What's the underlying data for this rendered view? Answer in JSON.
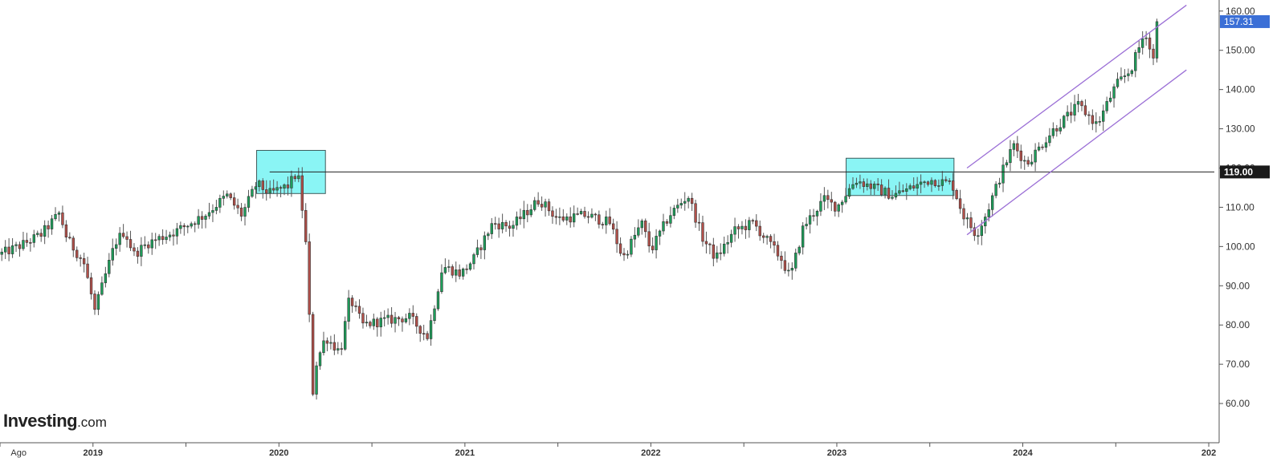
{
  "logo": {
    "main": "Investing",
    "suffix": ".com"
  },
  "chart_data": {
    "type": "candlestick",
    "interval": "weekly",
    "ylim": [
      50,
      162
    ],
    "y_ticks": [
      "60.00",
      "70.00",
      "80.00",
      "90.00",
      "100.00",
      "110.00",
      "120.00",
      "130.00",
      "140.00",
      "150.00",
      "160.00"
    ],
    "y_tick_values": [
      60,
      70,
      80,
      90,
      100,
      110,
      120,
      130,
      140,
      150,
      160
    ],
    "x_labels": [
      {
        "t": 2018.6,
        "label": "Ago",
        "bold": false
      },
      {
        "t": 2019.0,
        "label": "2019",
        "bold": true
      },
      {
        "t": 2020.0,
        "label": "2020",
        "bold": true
      },
      {
        "t": 2021.0,
        "label": "2021",
        "bold": true
      },
      {
        "t": 2022.0,
        "label": "2022",
        "bold": true
      },
      {
        "t": 2023.0,
        "label": "2023",
        "bold": true
      },
      {
        "t": 2024.0,
        "label": "2024",
        "bold": true
      },
      {
        "t": 2025.0,
        "label": "202",
        "bold": true
      }
    ],
    "x_range": [
      2018.5,
      2025.03
    ],
    "last_price": {
      "value": 157.31,
      "label": "157.31"
    },
    "horizontal_level": {
      "value": 119.0,
      "label": "119.00"
    },
    "zones": [
      {
        "t0": 2019.88,
        "t1": 2020.25,
        "y0": 113.5,
        "y1": 124.5
      },
      {
        "t0": 2023.05,
        "t1": 2023.63,
        "y0": 113.0,
        "y1": 122.5
      }
    ],
    "channel": [
      {
        "t0": 2023.7,
        "v0": 120.0,
        "t1": 2024.88,
        "v1": 161.5
      },
      {
        "t0": 2023.7,
        "v0": 103.0,
        "t1": 2024.88,
        "v1": 145.0
      }
    ],
    "anchors": [
      [
        2018.5,
        98
      ],
      [
        2018.6,
        100
      ],
      [
        2018.72,
        103
      ],
      [
        2018.82,
        108.5
      ],
      [
        2018.86,
        102
      ],
      [
        2018.95,
        96
      ],
      [
        2018.99,
        88
      ],
      [
        2019.0,
        82
      ],
      [
        2019.05,
        90
      ],
      [
        2019.12,
        101
      ],
      [
        2019.17,
        104
      ],
      [
        2019.22,
        98
      ],
      [
        2019.3,
        101
      ],
      [
        2019.45,
        104
      ],
      [
        2019.6,
        108
      ],
      [
        2019.72,
        113
      ],
      [
        2019.8,
        108
      ],
      [
        2019.88,
        116
      ],
      [
        2019.95,
        113.5
      ],
      [
        2020.05,
        115.5
      ],
      [
        2020.1,
        119
      ],
      [
        2020.12,
        112
      ],
      [
        2020.15,
        98
      ],
      [
        2020.18,
        62
      ],
      [
        2020.2,
        70
      ],
      [
        2020.25,
        77
      ],
      [
        2020.33,
        73
      ],
      [
        2020.38,
        87
      ],
      [
        2020.45,
        80
      ],
      [
        2020.55,
        81
      ],
      [
        2020.7,
        82
      ],
      [
        2020.8,
        77
      ],
      [
        2020.88,
        95
      ],
      [
        2020.98,
        93
      ],
      [
        2021.05,
        97
      ],
      [
        2021.15,
        106
      ],
      [
        2021.25,
        105
      ],
      [
        2021.4,
        112
      ],
      [
        2021.5,
        107
      ],
      [
        2021.65,
        108
      ],
      [
        2021.78,
        106
      ],
      [
        2021.85,
        97
      ],
      [
        2021.95,
        106
      ],
      [
        2022.0,
        99
      ],
      [
        2022.1,
        108
      ],
      [
        2022.2,
        113
      ],
      [
        2022.28,
        102
      ],
      [
        2022.35,
        97
      ],
      [
        2022.45,
        104
      ],
      [
        2022.55,
        106
      ],
      [
        2022.7,
        97
      ],
      [
        2022.75,
        92
      ],
      [
        2022.82,
        105
      ],
      [
        2022.93,
        112
      ],
      [
        2023.0,
        110
      ],
      [
        2023.1,
        117
      ],
      [
        2023.2,
        115
      ],
      [
        2023.3,
        113
      ],
      [
        2023.4,
        115
      ],
      [
        2023.5,
        117
      ],
      [
        2023.62,
        116
      ],
      [
        2023.68,
        108
      ],
      [
        2023.75,
        103
      ],
      [
        2023.8,
        108
      ],
      [
        2023.88,
        118
      ],
      [
        2023.95,
        126
      ],
      [
        2024.02,
        121
      ],
      [
        2024.15,
        129
      ],
      [
        2024.3,
        136
      ],
      [
        2024.4,
        131
      ],
      [
        2024.5,
        141
      ],
      [
        2024.58,
        145
      ],
      [
        2024.66,
        155
      ],
      [
        2024.7,
        147
      ],
      [
        2024.73,
        157.3
      ]
    ]
  }
}
